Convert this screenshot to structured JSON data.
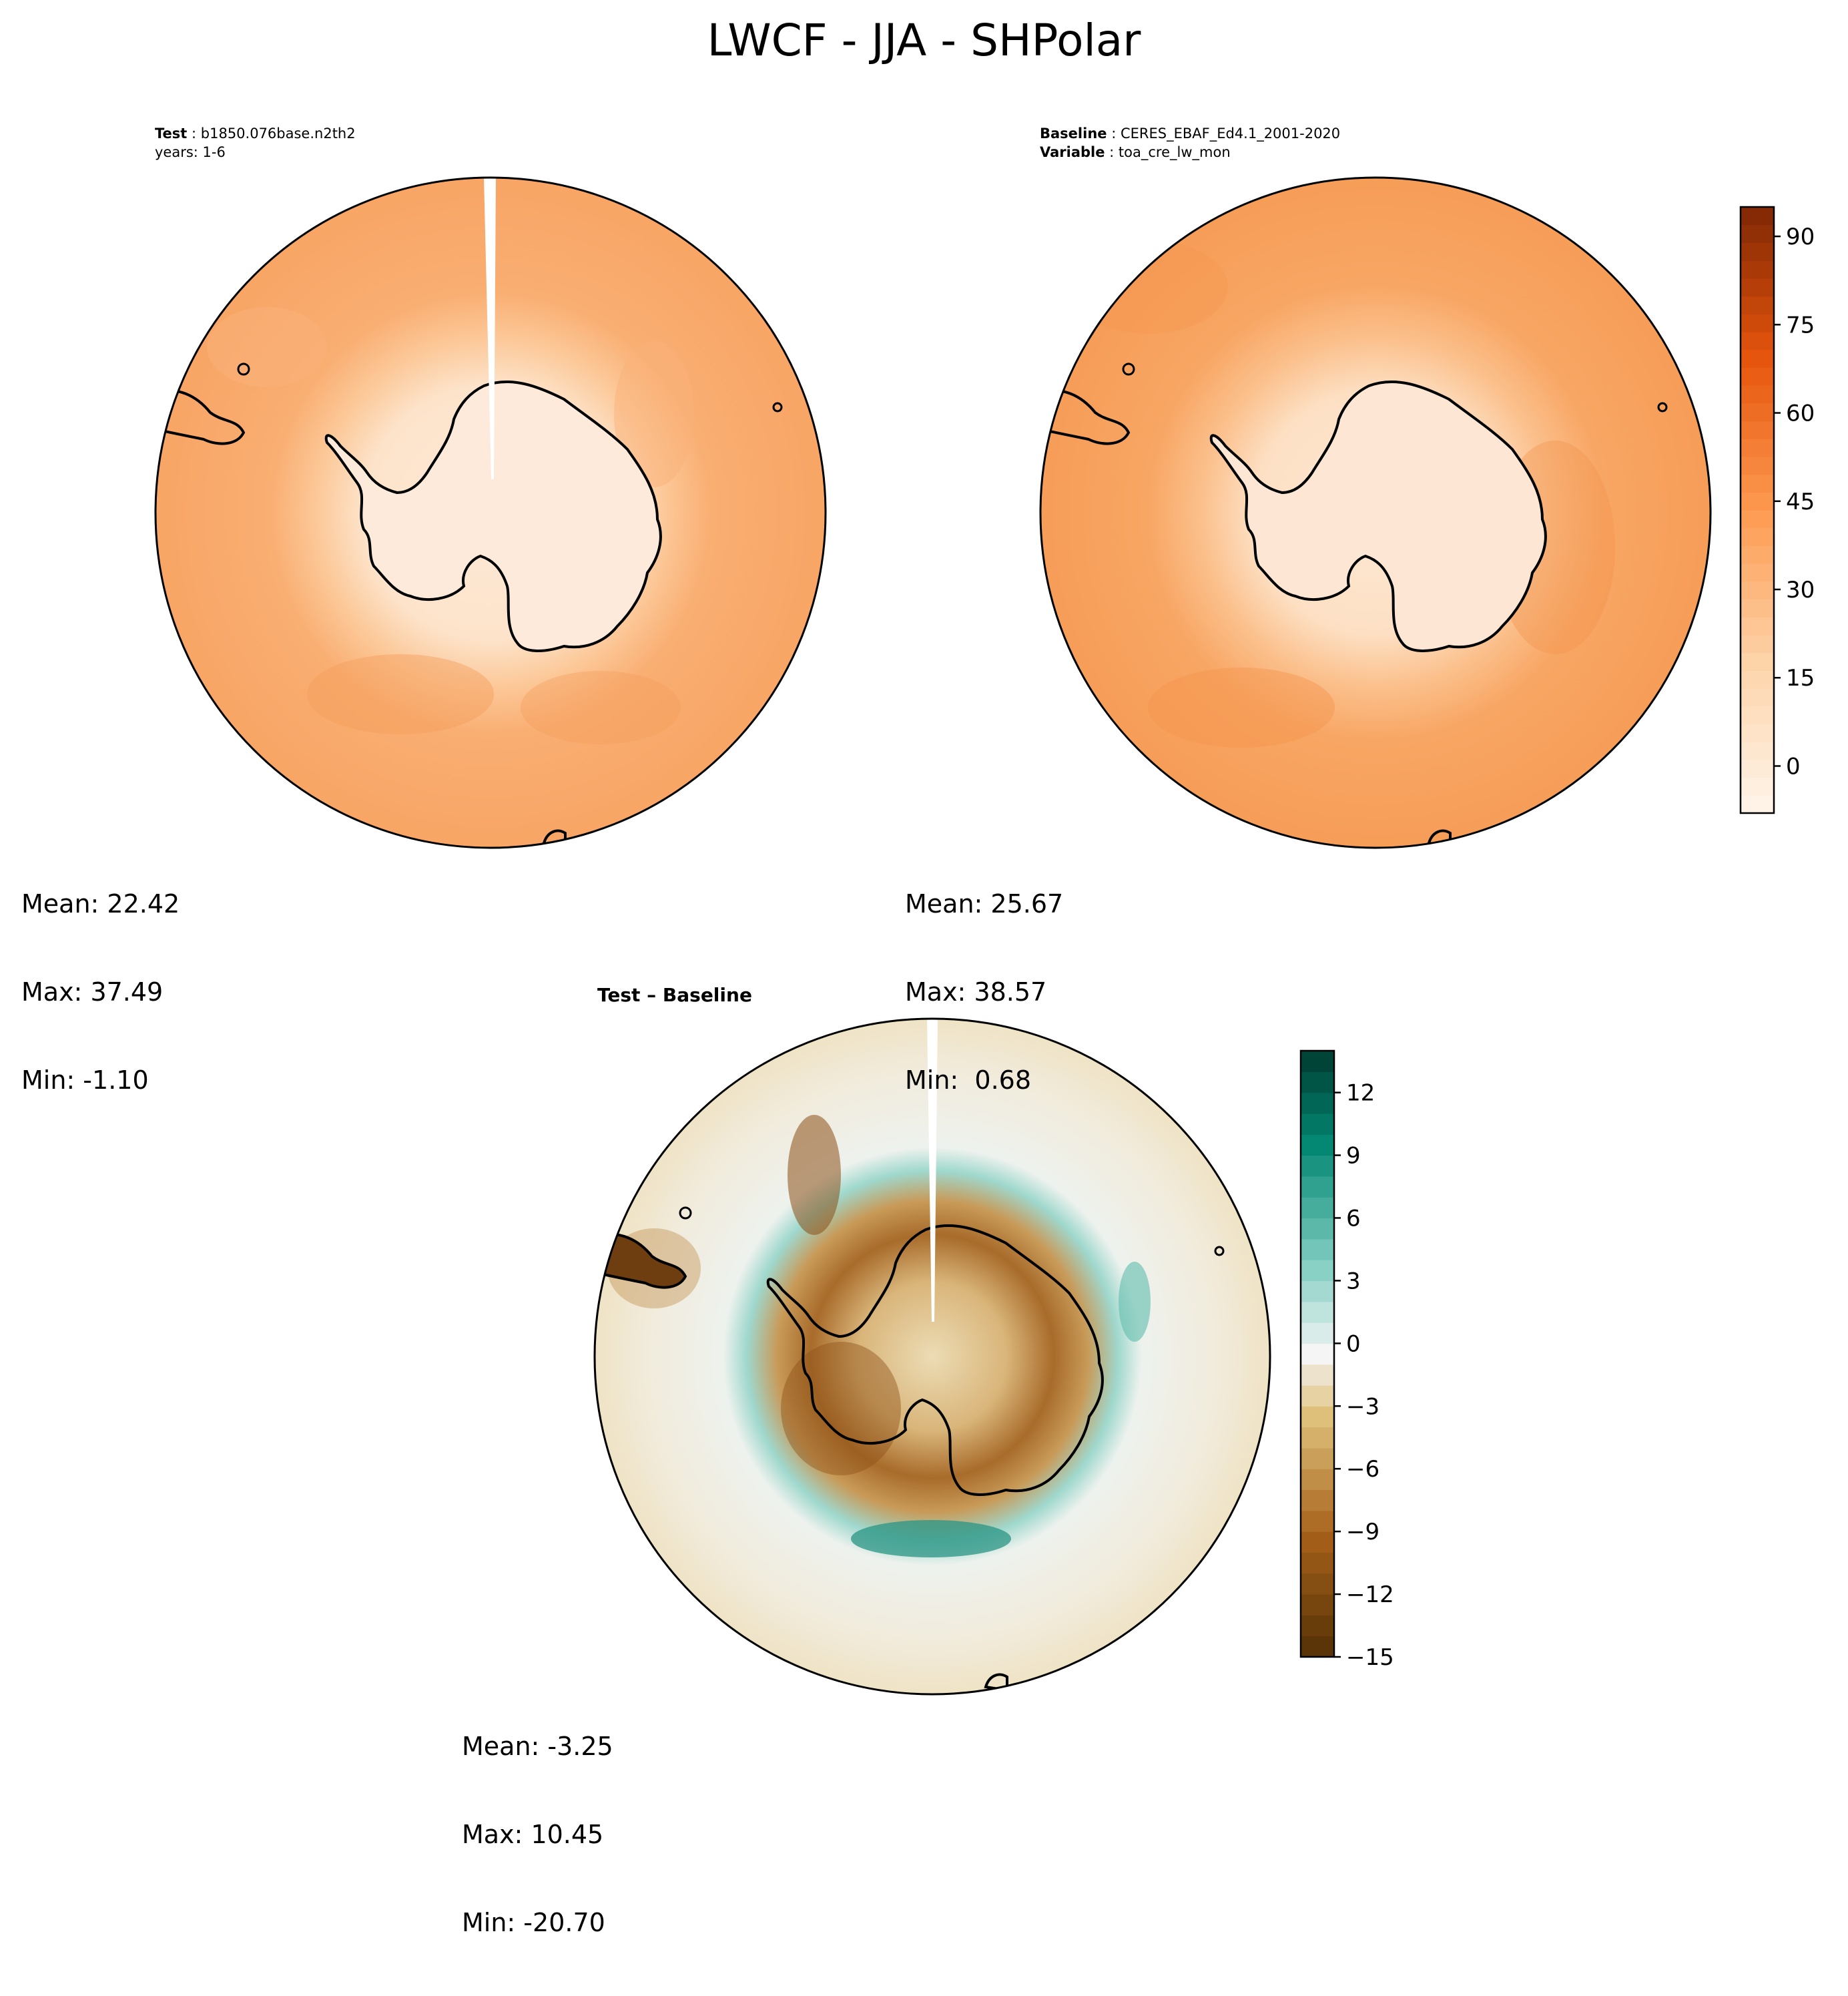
{
  "figure": {
    "title": "LWCF - JJA - SHPolar"
  },
  "panels": {
    "test": {
      "label_key": "Test",
      "label_value": "b1850.076base.n2th2",
      "years": "years: 1-6",
      "stats": {
        "mean": "Mean: 22.42",
        "max": "Max: 37.49",
        "min": "Min: -1.10"
      }
    },
    "baseline": {
      "label_key": "Baseline",
      "label_value": "CERES_EBAF_Ed4.1_2001-2020",
      "var_key": "Variable",
      "var_value": "toa_cre_lw_mon",
      "stats": {
        "mean": "Mean: 25.67",
        "max": "Max: 38.57",
        "min": "Min:  0.68"
      }
    },
    "diff": {
      "title": "Test – Baseline",
      "stats": {
        "mean": "Mean: -3.25",
        "max": "Max: 10.45",
        "min": "Min: -20.70"
      }
    }
  },
  "colorbars": {
    "main": {
      "ticks": [
        "90",
        "75",
        "60",
        "45",
        "30",
        "15",
        "0"
      ],
      "tick_values": [
        90,
        75,
        60,
        45,
        30,
        15,
        0
      ],
      "range": [
        -8,
        95
      ],
      "colormap": "Oranges"
    },
    "diff": {
      "ticks": [
        "12",
        "9",
        "6",
        "3",
        "0",
        "−3",
        "−6",
        "−9",
        "−12",
        "−15"
      ],
      "tick_values": [
        12,
        9,
        6,
        3,
        0,
        -3,
        -6,
        -9,
        -12,
        -15
      ],
      "range": [
        -15,
        14
      ],
      "colormap": "BrBG"
    }
  },
  "colors": {
    "test_ocean": "#f8a96a",
    "test_inner": "#fcd2ad",
    "test_land": "#fde9d8",
    "baseline_ocean": "#f7a363",
    "baseline_inner": "#fbc597",
    "baseline_land": "#fde6d2",
    "diff_bg": "#f2efe6",
    "diff_brown": "#9a5a1c",
    "diff_teal": "#4fb3a4"
  },
  "chart_data": [
    {
      "type": "heatmap",
      "title": "LWCF - JJA - SHPolar",
      "subplot": "Test: b1850.076base.n2th2, years: 1-6",
      "projection": "south polar stereographic",
      "mean": 22.42,
      "max": 37.49,
      "min": -1.1,
      "colorbar_ticks": [
        0,
        15,
        30,
        45,
        60,
        75,
        90
      ]
    },
    {
      "type": "heatmap",
      "subplot": "Baseline: CERES_EBAF_Ed4.1_2001-2020, Variable: toa_cre_lw_mon",
      "projection": "south polar stereographic",
      "mean": 25.67,
      "max": 38.57,
      "min": 0.68,
      "colorbar_ticks": [
        0,
        15,
        30,
        45,
        60,
        75,
        90
      ]
    },
    {
      "type": "heatmap",
      "subplot": "Test – Baseline",
      "projection": "south polar stereographic",
      "mean": -3.25,
      "max": 10.45,
      "min": -20.7,
      "colorbar_ticks": [
        -15,
        -12,
        -9,
        -6,
        -3,
        0,
        3,
        6,
        9,
        12
      ]
    }
  ]
}
